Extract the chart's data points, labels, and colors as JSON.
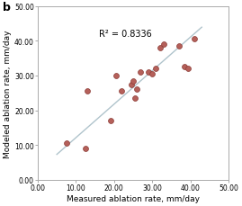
{
  "x_measured": [
    7.5,
    12.5,
    13.0,
    19.0,
    20.5,
    22.0,
    24.5,
    25.0,
    25.5,
    26.0,
    27.0,
    29.0,
    30.0,
    31.0,
    32.0,
    33.0,
    37.0,
    38.5,
    39.5,
    41.0
  ],
  "y_modeled": [
    10.5,
    9.0,
    25.5,
    17.0,
    30.0,
    25.5,
    27.5,
    28.5,
    23.5,
    26.0,
    31.0,
    31.0,
    30.5,
    32.0,
    38.0,
    39.0,
    38.5,
    32.5,
    32.0,
    40.5
  ],
  "trendline_x": [
    5.0,
    43.0
  ],
  "trendline_slope": 0.963,
  "trendline_intercept": 2.5,
  "r2_text": "R² = 0.8336",
  "r2_x": 0.32,
  "r2_y": 0.83,
  "xlabel": "Measured ablation rate, mm/day",
  "ylabel": "Modeled ablation rate, mm/day",
  "panel_label": "b",
  "xlim": [
    0.0,
    50.0
  ],
  "ylim": [
    0.0,
    50.0
  ],
  "xticks": [
    0.0,
    10.0,
    20.0,
    30.0,
    40.0,
    50.0
  ],
  "yticks": [
    0.0,
    10.0,
    20.0,
    30.0,
    40.0,
    50.0
  ],
  "marker_color": "#b5605a",
  "marker_edge_color": "#8b3a35",
  "trendline_color": "#b0c4cc",
  "spine_color": "#aaaaaa",
  "background_color": "#ffffff"
}
